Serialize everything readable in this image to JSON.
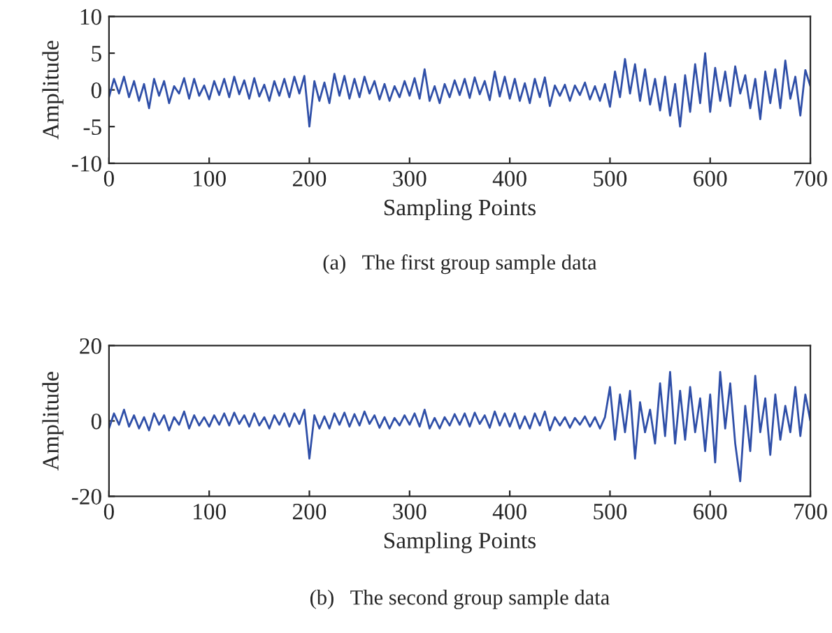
{
  "chart_data": [
    {
      "type": "line",
      "title": "(a)   The first group sample data",
      "xlabel": "Sampling Points",
      "ylabel": "Amplitude",
      "xlim": [
        0,
        700
      ],
      "ylim": [
        -10,
        10
      ],
      "xticks": [
        0,
        100,
        200,
        300,
        400,
        500,
        600,
        700
      ],
      "yticks": [
        -10,
        -5,
        0,
        5,
        10
      ],
      "grid": false,
      "legend": false,
      "series": [
        {
          "color": "#2f4fa8",
          "x": [
            0,
            5,
            10,
            15,
            20,
            25,
            30,
            35,
            40,
            45,
            50,
            55,
            60,
            65,
            70,
            75,
            80,
            85,
            90,
            95,
            100,
            105,
            110,
            115,
            120,
            125,
            130,
            135,
            140,
            145,
            150,
            155,
            160,
            165,
            170,
            175,
            180,
            185,
            190,
            195,
            200,
            205,
            210,
            215,
            220,
            225,
            230,
            235,
            240,
            245,
            250,
            255,
            260,
            265,
            270,
            275,
            280,
            285,
            290,
            295,
            300,
            305,
            310,
            315,
            320,
            325,
            330,
            335,
            340,
            345,
            350,
            355,
            360,
            365,
            370,
            375,
            380,
            385,
            390,
            395,
            400,
            405,
            410,
            415,
            420,
            425,
            430,
            435,
            440,
            445,
            450,
            455,
            460,
            465,
            470,
            475,
            480,
            485,
            490,
            495,
            500,
            505,
            510,
            515,
            520,
            525,
            530,
            535,
            540,
            545,
            550,
            555,
            560,
            565,
            570,
            575,
            580,
            585,
            590,
            595,
            600,
            605,
            610,
            615,
            620,
            625,
            630,
            635,
            640,
            645,
            650,
            655,
            660,
            665,
            670,
            675,
            680,
            685,
            690,
            695,
            700
          ],
          "values": [
            -1,
            1.5,
            -0.5,
            1.8,
            -1,
            1.2,
            -1.5,
            0.8,
            -2.5,
            1.5,
            -0.8,
            1.2,
            -1.8,
            0.5,
            -0.5,
            1.6,
            -1.2,
            1.5,
            -0.8,
            0.6,
            -1.3,
            1.2,
            -0.7,
            1.5,
            -1,
            1.8,
            -0.6,
            1.3,
            -1.2,
            1.6,
            -0.9,
            0.7,
            -1.5,
            1.2,
            -0.8,
            1.5,
            -1,
            1.8,
            -0.5,
            1.9,
            -5,
            1.2,
            -1.5,
            1,
            -1.8,
            2.2,
            -0.8,
            1.9,
            -1.2,
            1.5,
            -1,
            1.8,
            -0.5,
            1.2,
            -1.3,
            0.8,
            -1.5,
            0.5,
            -1,
            1.2,
            -0.8,
            1.6,
            -1.2,
            2.8,
            -1.5,
            0.5,
            -1.8,
            0.8,
            -1,
            1.3,
            -0.7,
            1.5,
            -1.1,
            1.7,
            -0.6,
            1.2,
            -1.4,
            2.5,
            -0.9,
            1.8,
            -1.2,
            1.5,
            -1.5,
            0.9,
            -1.8,
            1.5,
            -1,
            1.7,
            -2.2,
            0.6,
            -0.8,
            0.7,
            -1.5,
            0.6,
            -0.7,
            1,
            -1.3,
            0.5,
            -1.5,
            0.8,
            -2.3,
            2.5,
            -1,
            4.2,
            -0.5,
            3.5,
            -1.5,
            2.8,
            -2,
            1.5,
            -2.8,
            1.8,
            -3.5,
            0.8,
            -5,
            2,
            -3,
            3.5,
            -1.8,
            5,
            -3,
            3,
            -1.5,
            2.5,
            -2.2,
            3.2,
            -0.5,
            2,
            -2.5,
            1.5,
            -4,
            2.5,
            -1.8,
            2.8,
            -2.5,
            4,
            -1.2,
            1.8,
            -3.5,
            2.7,
            0.5
          ]
        }
      ]
    },
    {
      "type": "line",
      "title": "(b)   The second group sample data",
      "xlabel": "Sampling Points",
      "ylabel": "Amplitude",
      "xlim": [
        0,
        700
      ],
      "ylim": [
        -20,
        20
      ],
      "xticks": [
        0,
        100,
        200,
        300,
        400,
        500,
        600,
        700
      ],
      "yticks": [
        -20,
        0,
        20
      ],
      "grid": false,
      "legend": false,
      "series": [
        {
          "color": "#2f4fa8",
          "x": [
            0,
            5,
            10,
            15,
            20,
            25,
            30,
            35,
            40,
            45,
            50,
            55,
            60,
            65,
            70,
            75,
            80,
            85,
            90,
            95,
            100,
            105,
            110,
            115,
            120,
            125,
            130,
            135,
            140,
            145,
            150,
            155,
            160,
            165,
            170,
            175,
            180,
            185,
            190,
            195,
            200,
            205,
            210,
            215,
            220,
            225,
            230,
            235,
            240,
            245,
            250,
            255,
            260,
            265,
            270,
            275,
            280,
            285,
            290,
            295,
            300,
            305,
            310,
            315,
            320,
            325,
            330,
            335,
            340,
            345,
            350,
            355,
            360,
            365,
            370,
            375,
            380,
            385,
            390,
            395,
            400,
            405,
            410,
            415,
            420,
            425,
            430,
            435,
            440,
            445,
            450,
            455,
            460,
            465,
            470,
            475,
            480,
            485,
            490,
            495,
            500,
            505,
            510,
            515,
            520,
            525,
            530,
            535,
            540,
            545,
            550,
            555,
            560,
            565,
            570,
            575,
            580,
            585,
            590,
            595,
            600,
            605,
            610,
            615,
            620,
            625,
            630,
            635,
            640,
            645,
            650,
            655,
            660,
            665,
            670,
            675,
            680,
            685,
            690,
            695,
            700
          ],
          "values": [
            -2,
            2,
            -1,
            3,
            -1.5,
            1.5,
            -2,
            1,
            -2.5,
            2,
            -1,
            1.5,
            -2.5,
            1,
            -1,
            2.5,
            -2,
            1.5,
            -1.2,
            1,
            -1.5,
            1.5,
            -1,
            2,
            -1.2,
            2.2,
            -0.8,
            1.5,
            -1.5,
            2,
            -1.2,
            1,
            -2,
            1.5,
            -1,
            2,
            -1.5,
            2,
            -0.8,
            3,
            -10,
            1.5,
            -2,
            1.2,
            -2,
            2,
            -1,
            2.2,
            -1.5,
            1.8,
            -1.2,
            2.5,
            -0.8,
            1.5,
            -1.8,
            1,
            -2,
            0.8,
            -1.2,
            1.5,
            -1,
            2,
            -1.5,
            3,
            -2,
            0.8,
            -2,
            1,
            -1.2,
            1.8,
            -1,
            2,
            -1.5,
            2.2,
            -0.8,
            1.5,
            -1.8,
            2.5,
            -1.2,
            2,
            -1.5,
            2,
            -2,
            1.2,
            -2,
            2,
            -1.2,
            2.5,
            -2.5,
            1,
            -1.2,
            1,
            -1.8,
            0.8,
            -1,
            1.2,
            -1.5,
            1,
            -2,
            1,
            9,
            -5,
            7,
            -3,
            8,
            -10,
            5,
            -3,
            3,
            -6,
            10,
            -4,
            13,
            -6,
            8,
            -5,
            9,
            -3,
            6,
            -8,
            7,
            -11,
            13,
            -2,
            10,
            -6,
            -16,
            4,
            -8,
            12,
            -3,
            6,
            -9,
            7,
            -5,
            4,
            -3,
            9,
            -4,
            7,
            0
          ]
        }
      ]
    }
  ]
}
